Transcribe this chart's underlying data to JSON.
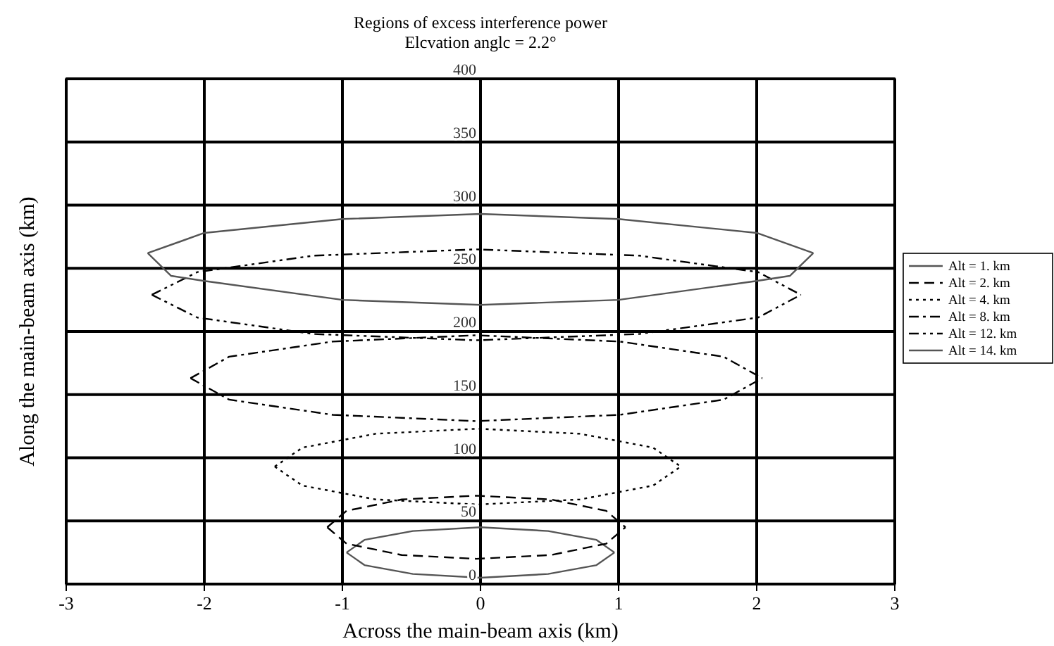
{
  "chart_data": {
    "type": "line",
    "title": "Regions of excess interference power",
    "subtitle": "Elcvation anglc = 2.2°",
    "xlabel": "Across the main-beam axis (km)",
    "ylabel": "Along the main-beam axis (km)",
    "xlim": [
      -3,
      3
    ],
    "xticks": [
      -3,
      -2,
      -1,
      0,
      1,
      2,
      3
    ],
    "ylim": [
      0,
      400
    ],
    "yticks": [
      0,
      50,
      100,
      150,
      200,
      250,
      300,
      350,
      400
    ],
    "grid": true,
    "legend": "right",
    "marker": "none",
    "series": [
      {
        "name": "Alt = 1. km",
        "color": "#555555",
        "line_style": "solid",
        "x": [
          -0.97,
          -0.84,
          -0.49,
          0,
          0.49,
          0.84,
          0.97
        ],
        "values": [
          25,
          35,
          42,
          45,
          42,
          35,
          25
        ]
      },
      {
        "color": "#555555",
        "line_style": "solid",
        "x": [
          -0.97,
          -0.84,
          -0.49,
          0,
          0.49,
          0.84,
          0.97
        ],
        "values": [
          25,
          15,
          8,
          5,
          8,
          15,
          25
        ]
      },
      {
        "name": "Alt = 2. km",
        "color": "#000000",
        "line_style": "dashed",
        "x": [
          -1.11,
          -0.97,
          -0.57,
          -0.03,
          0.51,
          0.91,
          1.05
        ],
        "values": [
          45,
          58,
          67,
          70,
          67,
          58,
          45
        ]
      },
      {
        "color": "#000000",
        "line_style": "dashed",
        "x": [
          -1.11,
          -0.97,
          -0.57,
          -0.03,
          0.51,
          0.91,
          1.05
        ],
        "values": [
          45,
          32,
          23,
          20,
          23,
          32,
          45
        ]
      },
      {
        "name": "Alt = 4. km",
        "color": "#000000",
        "line_style": "dotted",
        "x": [
          -1.49,
          -1.29,
          -0.76,
          -0.02,
          0.72,
          1.25,
          1.45
        ],
        "values": [
          93,
          108,
          119,
          123,
          119,
          108,
          93
        ]
      },
      {
        "color": "#000000",
        "line_style": "dotted",
        "x": [
          -1.49,
          -1.29,
          -0.76,
          -0.02,
          0.72,
          1.25,
          1.45
        ],
        "values": [
          93,
          78,
          67,
          63,
          67,
          78,
          93
        ]
      },
      {
        "name": "Alt = 8. km",
        "color": "#000000",
        "line_style": "dashdot",
        "x": [
          -2.1,
          -1.82,
          -1.07,
          -0.03,
          1.01,
          1.76,
          2.04
        ],
        "values": [
          163,
          180,
          192,
          197,
          192,
          180,
          163
        ]
      },
      {
        "color": "#000000",
        "line_style": "dashdot",
        "x": [
          -2.1,
          -1.82,
          -1.07,
          -0.03,
          1.01,
          1.76,
          2.04
        ],
        "values": [
          163,
          146,
          134,
          129,
          134,
          146,
          163
        ]
      },
      {
        "name": "Alt = 12. km",
        "color": "#000000",
        "line_style": "dashdotdot",
        "x": [
          -2.38,
          -2.05,
          -1.21,
          -0.03,
          1.15,
          2.01,
          2.32
        ],
        "values": [
          229,
          247,
          260,
          265,
          260,
          247,
          229
        ]
      },
      {
        "color": "#000000",
        "line_style": "dashdotdot",
        "x": [
          -2.38,
          -2.05,
          -1.21,
          -0.03,
          1.15,
          2.01,
          2.32
        ],
        "values": [
          229,
          211,
          198,
          193,
          198,
          211,
          229
        ]
      },
      {
        "name": "Alt = 14. km",
        "color": "#555555",
        "line_style": "solid",
        "x": [
          -2.41,
          -2,
          -1,
          0,
          1,
          2,
          2.41
        ],
        "values": [
          262,
          278,
          289,
          293,
          289,
          278,
          262
        ]
      },
      {
        "color": "#555555",
        "line_style": "solid",
        "x": [
          -2.41,
          -2.24,
          -2,
          -1,
          0,
          1,
          2,
          2.24,
          2.41
        ],
        "values": [
          262,
          244,
          240,
          225,
          221,
          225,
          240,
          244,
          262
        ]
      }
    ]
  }
}
